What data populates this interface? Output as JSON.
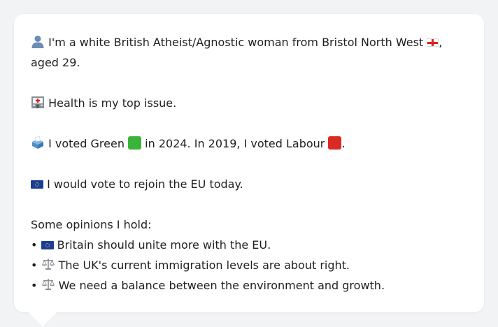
{
  "profile": {
    "intro_part1": "I'm a white British Atheist/Agnostic woman from Bristol North West",
    "intro_part2": ",",
    "intro_line2": "aged 29.",
    "health": "Health is my top issue.",
    "vote_part1": "I voted Green",
    "vote_part2": "in 2024. In 2019, I voted Labour",
    "vote_part3": ".",
    "eu": "I would vote to rejoin the EU today.",
    "opinions_heading": "Some opinions I hold:",
    "opinions": [
      "Britain should unite more with the EU.",
      "The UK's current immigration levels are about right.",
      "We need a balance between the environment and growth."
    ],
    "bullet": "•"
  },
  "icons": {
    "person": "person-icon",
    "hospital": "hospital-icon",
    "ballot": "ballot-box-icon",
    "england_flag": "england-flag-icon",
    "eu_flag": "eu-flag-icon",
    "green_square": "green-square-icon",
    "red_square": "red-square-icon",
    "scales": "scales-icon"
  },
  "colors": {
    "green": "#3bb33b",
    "red": "#d92b23",
    "eu_blue": "#1a3d9a"
  }
}
